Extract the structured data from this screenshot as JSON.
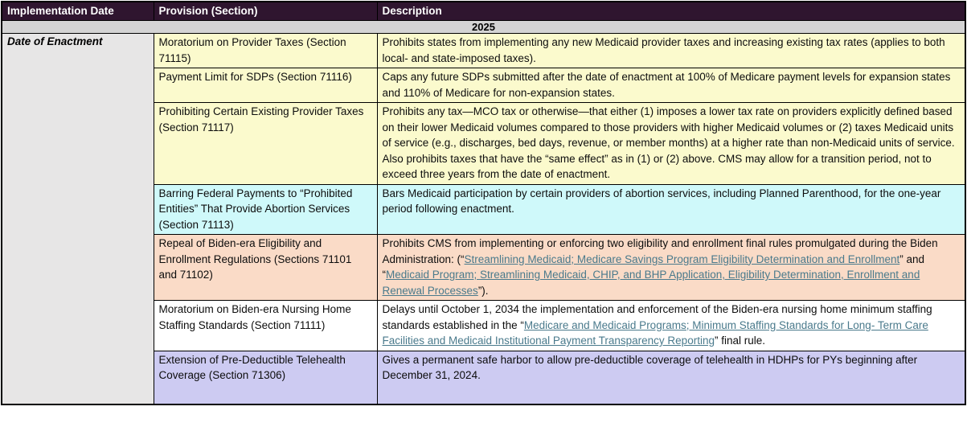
{
  "table": {
    "columns": [
      "Implementation Date",
      "Provision (Section)",
      "Description"
    ],
    "year_header": "2025",
    "group_label": "Date of Enactment",
    "colors": {
      "header_bg": "#2f152f",
      "header_text": "#ffffff",
      "year_row_bg": "#d4d4d4",
      "date_column_bg": "#e7e6e6",
      "link": "#4a7a8c",
      "border": "#000000",
      "row_yellow": "#fbfacd",
      "row_cyan": "#cff9fa",
      "row_peach": "#fadbc7",
      "row_white": "#ffffff",
      "row_lavender": "#cdcbf2"
    },
    "rows": [
      {
        "provision": "Moratorium on Provider Taxes (Section 71115)",
        "color_key": "row_yellow",
        "description": [
          {
            "text": "Prohibits states from implementing any new Medicaid provider taxes and increasing existing tax rates (applies to both local- and state-imposed taxes).",
            "link": false
          }
        ]
      },
      {
        "provision": "Payment Limit for SDPs (Section 71116)",
        "color_key": "row_yellow",
        "description": [
          {
            "text": "Caps any future SDPs submitted after the date of enactment at 100% of Medicare payment levels for expansion states and 110% of Medicare for non-expansion states.",
            "link": false
          }
        ]
      },
      {
        "provision": "Prohibiting Certain Existing Provider Taxes (Section 71117)",
        "color_key": "row_yellow",
        "description": [
          {
            "text": "Prohibits any tax—MCO tax or otherwise—that either (1) imposes a lower tax rate on providers explicitly defined based on their lower Medicaid volumes compared to those providers with higher Medicaid volumes or (2) taxes Medicaid units of service (e.g., discharges, bed days, revenue, or member months) at a higher rate than non-Medicaid units of service. Also prohibits taxes that have the “same effect” as in (1) or (2) above. CMS may allow for a transition period, not to exceed three years from the date of enactment.",
            "link": false
          }
        ]
      },
      {
        "provision": "Barring Federal Payments to “Prohibited Entities” That Provide Abortion Services (Section 71113)",
        "color_key": "row_cyan",
        "description": [
          {
            "text": "Bars Medicaid participation by certain providers of abortion services, including Planned Parenthood, for the one-year period following enactment.",
            "link": false
          }
        ]
      },
      {
        "provision": "Repeal of Biden-era Eligibility and Enrollment Regulations (Sections 71101 and 71102)",
        "color_key": "row_peach",
        "description": [
          {
            "text": "Prohibits CMS from implementing or enforcing two eligibility and enrollment final rules promulgated during the Biden Administration: (“",
            "link": false
          },
          {
            "text": "Streamlining Medicaid; Medicare Savings Program Eligibility Determination and Enrollment",
            "link": true
          },
          {
            "text": "” and “",
            "link": false
          },
          {
            "text": "Medicaid Program; Streamlining Medicaid, CHIP, and BHP Application, Eligibility Determination, Enrollment and Renewal Processes",
            "link": true
          },
          {
            "text": "”).",
            "link": false
          }
        ]
      },
      {
        "provision": "Moratorium on Biden-era Nursing Home Staffing Standards (Section 71111)",
        "color_key": "row_white",
        "description": [
          {
            "text": "Delays until October 1, 2034 the implementation and enforcement of the Biden-era nursing home minimum staffing standards established in the “",
            "link": false
          },
          {
            "text": "Medicare and Medicaid Programs; Minimum Staffing Standards for Long- Term Care Facilities and Medicaid Institutional Payment Transparency Reporting",
            "link": true
          },
          {
            "text": "” final rule.",
            "link": false
          }
        ]
      },
      {
        "provision": "Extension of Pre-Deductible Telehealth Coverage (Section 71306)",
        "color_key": "row_lavender",
        "description": [
          {
            "text": "Gives a permanent safe harbor to allow pre-deductible coverage of telehealth in HDHPs for PYs beginning after December 31, 2024.",
            "link": false
          }
        ]
      }
    ]
  }
}
